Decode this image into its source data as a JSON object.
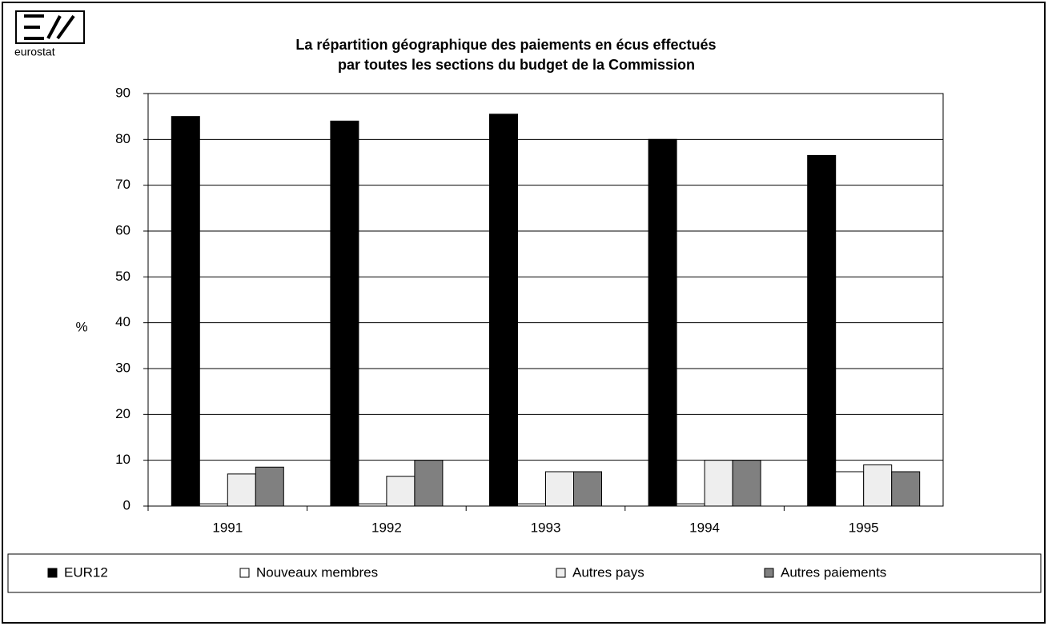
{
  "logo": "eurostat",
  "chart_data": {
    "type": "bar",
    "title": "La répartition géographique des paiements en écus effectués",
    "subtitle": "par toutes les sections du budget de la Commission",
    "y_label": "%",
    "categories": [
      "1991",
      "1992",
      "1993",
      "1994",
      "1995"
    ],
    "series": [
      {
        "name": "EUR12",
        "color": "#000000",
        "values": [
          85,
          84,
          85.5,
          80,
          76.5
        ]
      },
      {
        "name": "Nouveaux membres",
        "color": "#ffffff",
        "values": [
          0.5,
          0.5,
          0.5,
          0.5,
          7.5
        ]
      },
      {
        "name": "Autres pays",
        "color": "#eeeeee",
        "values": [
          7,
          6.5,
          7.5,
          10,
          9
        ]
      },
      {
        "name": "Autres paiements",
        "color": "#808080",
        "values": [
          8.5,
          10,
          7.5,
          10,
          7.5
        ]
      }
    ],
    "ylim": [
      0,
      90
    ],
    "yticks": [
      0,
      10,
      20,
      30,
      40,
      50,
      60,
      70,
      80,
      90
    ],
    "grid": true
  }
}
